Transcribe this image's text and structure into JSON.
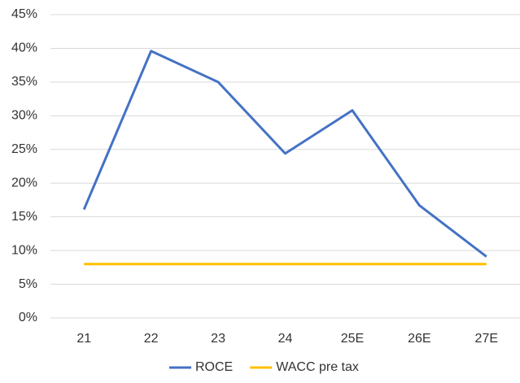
{
  "chart_data": {
    "type": "line",
    "categories": [
      "21",
      "22",
      "23",
      "24",
      "25E",
      "26E",
      "27E"
    ],
    "series": [
      {
        "name": "ROCE",
        "color": "#4472c4",
        "values": [
          16.1,
          39.6,
          35.0,
          24.4,
          30.8,
          16.7,
          9.1
        ]
      },
      {
        "name": "WACC pre tax",
        "color": "#ffc000",
        "values": [
          8,
          8,
          8,
          8,
          8,
          8,
          8
        ]
      }
    ],
    "ylim": [
      0,
      45
    ],
    "yticks": [
      {
        "value": 0,
        "label": "0%"
      },
      {
        "value": 5,
        "label": "5%"
      },
      {
        "value": 10,
        "label": "10%"
      },
      {
        "value": 15,
        "label": "15%"
      },
      {
        "value": 20,
        "label": "20%"
      },
      {
        "value": 25,
        "label": "25%"
      },
      {
        "value": 30,
        "label": "30%"
      },
      {
        "value": 35,
        "label": "35%"
      },
      {
        "value": 40,
        "label": "40%"
      },
      {
        "value": 45,
        "label": "45%"
      }
    ],
    "grid": true,
    "legend": "bottom"
  }
}
